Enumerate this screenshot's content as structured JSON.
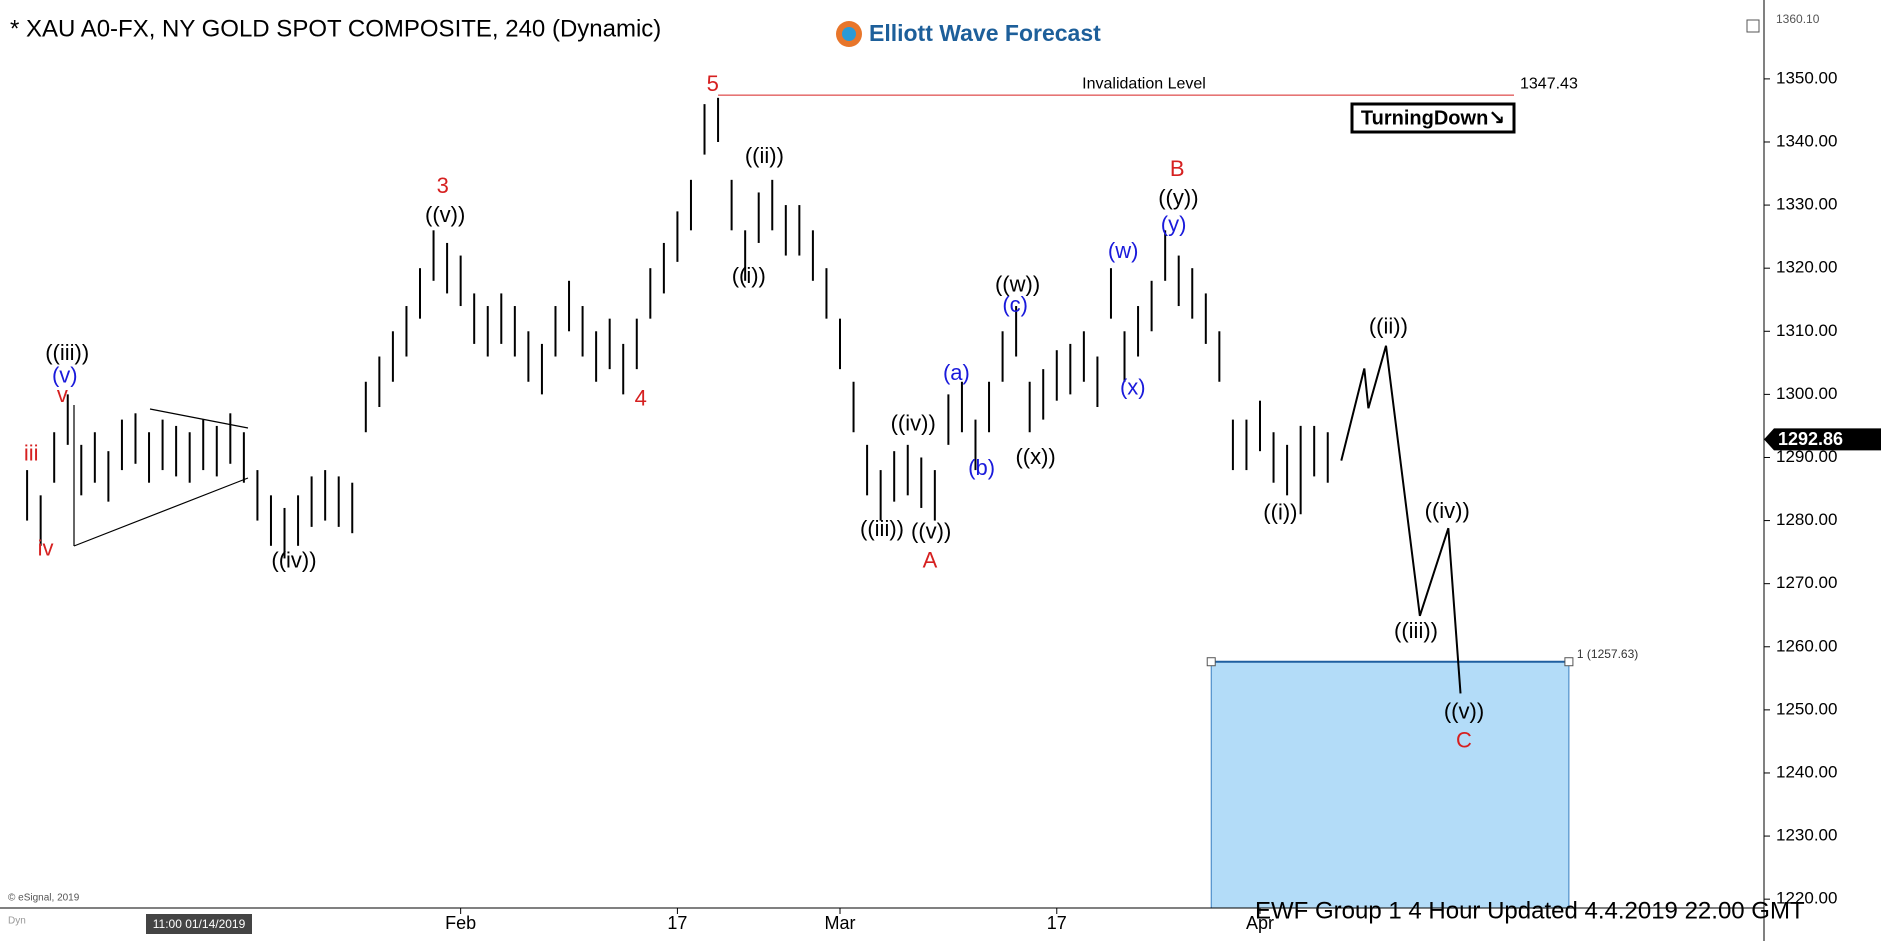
{
  "header": {
    "title": "* XAU A0-FX, NY GOLD SPOT COMPOSITE, 240 (Dynamic)",
    "logo": "Elliott Wave Forecast",
    "badge": "TurningDown↘",
    "footer": "EWF Group 1 4 Hour  Updated 4.4.2019 22.00 GMT",
    "copyright": "© eSignal, 2019",
    "cursor_time": "11:00 01/14/2019",
    "corner": "Dyn"
  },
  "chart_data": {
    "type": "ohlc",
    "x": [
      0,
      1,
      2,
      3,
      4,
      5,
      6,
      7,
      8,
      9,
      10,
      11,
      12,
      13,
      14,
      15,
      16,
      17,
      18,
      19,
      20,
      21,
      22,
      23,
      24,
      25,
      26,
      27,
      28,
      29,
      30,
      31,
      32,
      33,
      34,
      35,
      36,
      37,
      38,
      39,
      40,
      41,
      42,
      43,
      44,
      45,
      46,
      47,
      48,
      49,
      50,
      51,
      52,
      53,
      54,
      55,
      56,
      57,
      58,
      59,
      60,
      61,
      62,
      63,
      64,
      65,
      66,
      67,
      68,
      69,
      70,
      71,
      72,
      73,
      74,
      75,
      76,
      77,
      78,
      79,
      80,
      81,
      82,
      83,
      84,
      85,
      86,
      87,
      88,
      89,
      90,
      91,
      92,
      93,
      94,
      95,
      96
    ],
    "high": [
      1288,
      1284,
      1294,
      1300,
      1292,
      1294,
      1291,
      1296,
      1297,
      1294,
      1296,
      1295,
      1294,
      1296,
      1295,
      1297,
      1294,
      1288,
      1284,
      1282,
      1284,
      1287,
      1288,
      1287,
      1286,
      1302,
      1306,
      1310,
      1314,
      1320,
      1326,
      1324,
      1322,
      1316,
      1314,
      1316,
      1314,
      1310,
      1308,
      1314,
      1318,
      1314,
      1310,
      1312,
      1308,
      1312,
      1320,
      1324,
      1329,
      1334,
      1346,
      1347,
      1334,
      1326,
      1332,
      1334,
      1330,
      1330,
      1326,
      1320,
      1312,
      1302,
      1292,
      1288,
      1291,
      1292,
      1290,
      1288,
      1300,
      1302,
      1296,
      1302,
      1310,
      1314,
      1302,
      1304,
      1307,
      1308,
      1310,
      1306,
      1320,
      1310,
      1314,
      1318,
      1326,
      1322,
      1320,
      1316,
      1310,
      1296,
      1296,
      1299,
      1294,
      1292,
      1295,
      1295,
      1294
    ],
    "low": [
      1280,
      1276,
      1286,
      1292,
      1284,
      1286,
      1283,
      1288,
      1289,
      1286,
      1288,
      1287,
      1286,
      1288,
      1287,
      1289,
      1286,
      1280,
      1276,
      1274,
      1276,
      1279,
      1280,
      1279,
      1278,
      1294,
      1298,
      1302,
      1306,
      1312,
      1318,
      1316,
      1314,
      1308,
      1306,
      1308,
      1306,
      1302,
      1300,
      1306,
      1310,
      1306,
      1302,
      1304,
      1300,
      1304,
      1312,
      1316,
      1321,
      1326,
      1338,
      1340,
      1326,
      1318,
      1324,
      1326,
      1322,
      1322,
      1318,
      1312,
      1304,
      1294,
      1284,
      1280,
      1283,
      1284,
      1282,
      1280,
      1292,
      1294,
      1288,
      1294,
      1302,
      1306,
      1294,
      1296,
      1299,
      1300,
      1302,
      1298,
      1312,
      1302,
      1306,
      1310,
      1318,
      1314,
      1312,
      1308,
      1302,
      1288,
      1288,
      1291,
      1286,
      1284,
      1281,
      1287,
      1286
    ],
    "color": "#000000",
    "projection": {
      "x": [
        97.0,
        98.7,
        99.0,
        100.3,
        102.8,
        104.9,
        105.8
      ],
      "values": [
        1289.5,
        1304.1,
        1297.8,
        1307.7,
        1264.9,
        1278.8,
        1252.6
      ]
    },
    "invalidation": {
      "label": "Invalidation Level",
      "value": 1347.43,
      "color": "#d62020"
    },
    "target_zone": {
      "x": [
        87.4,
        113.8
      ],
      "value": 1257.63,
      "label": "1 (1257.63)",
      "color": "#b3dcf8"
    },
    "last_price": {
      "value": 1292.86,
      "label": "1292.86"
    },
    "axis_top_label": "1360.10",
    "annotations": [
      {
        "text": "5",
        "color": "#d62020"
      },
      {
        "text": "3",
        "color": "#d62020"
      },
      {
        "text": "((v))",
        "color": "#000"
      },
      {
        "text": "4",
        "color": "#d62020"
      },
      {
        "text": "((ii))",
        "color": "#000"
      },
      {
        "text": "((i))",
        "color": "#000"
      },
      {
        "text": "((iii))",
        "color": "#000"
      },
      {
        "text": "(v)",
        "color": "#1a1adb"
      },
      {
        "text": "v",
        "color": "#d62020"
      },
      {
        "text": "iii",
        "color": "#d62020"
      },
      {
        "text": "iv",
        "color": "#d62020"
      },
      {
        "text": "((iv))",
        "color": "#000"
      },
      {
        "text": "((iv))",
        "color": "#000"
      },
      {
        "text": "((iii))",
        "color": "#000"
      },
      {
        "text": "((v))",
        "color": "#000"
      },
      {
        "text": "A",
        "color": "#d62020"
      },
      {
        "text": "(a)",
        "color": "#1a1adb"
      },
      {
        "text": "(b)",
        "color": "#1a1adb"
      },
      {
        "text": "((w))",
        "color": "#000"
      },
      {
        "text": "(c)",
        "color": "#1a1adb"
      },
      {
        "text": "((x))",
        "color": "#000"
      },
      {
        "text": "(w)",
        "color": "#1a1adb"
      },
      {
        "text": "(x)",
        "color": "#1a1adb"
      },
      {
        "text": "B",
        "color": "#d62020"
      },
      {
        "text": "((y))",
        "color": "#000"
      },
      {
        "text": "(y)",
        "color": "#1a1adb"
      },
      {
        "text": "((ii))",
        "color": "#000"
      },
      {
        "text": "((i))",
        "color": "#000"
      },
      {
        "text": "((iv))",
        "color": "#000"
      },
      {
        "text": "((iii))",
        "color": "#000"
      },
      {
        "text": "((v))",
        "color": "#000"
      },
      {
        "text": "C",
        "color": "#d62020"
      }
    ],
    "xlim": [
      -2,
      128.2
    ],
    "xticks": [
      {
        "value": 32,
        "label": "Feb"
      },
      {
        "value": 48,
        "label": "17"
      },
      {
        "value": 60,
        "label": "Mar"
      },
      {
        "value": 76,
        "label": "17"
      },
      {
        "value": 91,
        "label": "Apr"
      }
    ],
    "ylim": [
      1218.6,
      1360.6
    ],
    "yticks": [
      {
        "value": 1220,
        "label": "1220.00"
      },
      {
        "value": 1230,
        "label": "1230.00"
      },
      {
        "value": 1240,
        "label": "1240.00"
      },
      {
        "value": 1250,
        "label": "1250.00"
      },
      {
        "value": 1260,
        "label": "1260.00"
      },
      {
        "value": 1270,
        "label": "1270.00"
      },
      {
        "value": 1280,
        "label": "1280.00"
      },
      {
        "value": 1290,
        "label": "1290.00"
      },
      {
        "value": 1300,
        "label": "1300.00"
      },
      {
        "value": 1310,
        "label": "1310.00"
      },
      {
        "value": 1320,
        "label": "1320.00"
      },
      {
        "value": 1330,
        "label": "1330.00"
      },
      {
        "value": 1340,
        "label": "1340.00"
      },
      {
        "value": 1350,
        "label": "1350.00"
      }
    ]
  }
}
